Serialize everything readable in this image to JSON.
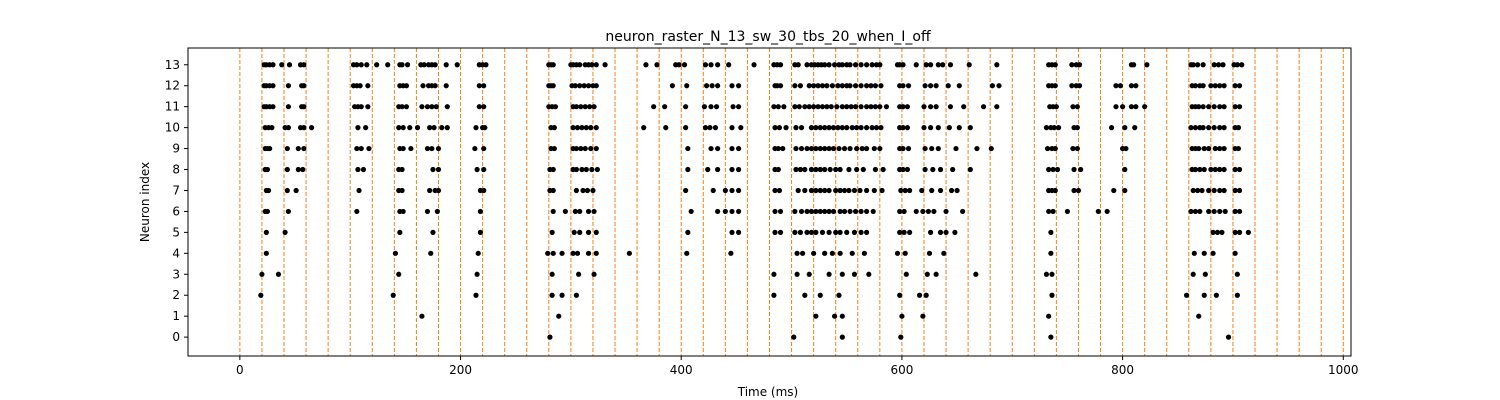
{
  "chart_data": {
    "type": "scatter",
    "title": "neuron_raster_N_13_sw_30_tbs_20_when_I_off",
    "xlabel": "Time (ms)",
    "ylabel": "Neuron index",
    "xlim": [
      -47,
      1007
    ],
    "ylim": [
      -0.9,
      13.8
    ],
    "xticks": [
      0,
      200,
      400,
      600,
      800,
      1000
    ],
    "yticks": [
      0,
      1,
      2,
      3,
      4,
      5,
      6,
      7,
      8,
      9,
      10,
      11,
      12,
      13
    ],
    "grid": false,
    "legend": "none",
    "colors": {
      "spike": "#000000",
      "boundary": "#ff7f0e"
    },
    "time_bin_boundaries": [
      0,
      20,
      40,
      60,
      80,
      100,
      120,
      140,
      160,
      180,
      200,
      220,
      240,
      260,
      280,
      300,
      320,
      340,
      360,
      380,
      400,
      420,
      440,
      460,
      480,
      500,
      520,
      540,
      560,
      580,
      600,
      620,
      640,
      660,
      680,
      700,
      720,
      740,
      760,
      780,
      800,
      820,
      840,
      860,
      880,
      900,
      920,
      940,
      960,
      980,
      1000
    ],
    "spikes": [
      {
        "neuron": 13,
        "times": [
          22,
          24,
          27,
          30,
          38,
          45,
          55,
          58,
          103,
          106,
          110,
          115,
          124,
          134,
          145,
          147,
          152,
          164,
          167,
          171,
          174,
          177,
          187,
          197,
          217,
          220,
          223,
          280,
          282,
          284,
          300,
          302,
          305,
          308,
          313,
          316,
          319,
          323,
          331,
          368,
          378,
          395,
          398,
          403,
          422,
          427,
          433,
          443,
          466,
          484,
          487,
          490,
          503,
          506,
          514,
          518,
          521,
          524,
          527,
          530,
          534,
          539,
          543,
          546,
          550,
          553,
          558,
          563,
          568,
          573,
          577,
          580,
          596,
          598,
          601,
          613,
          622,
          626,
          633,
          637,
          644,
          661,
          686,
          733,
          736,
          739,
          754,
          758,
          761,
          808,
          810,
          822,
          862,
          864,
          868,
          873,
          883,
          887,
          891,
          901,
          904,
          908
        ]
      },
      {
        "neuron": 12,
        "times": [
          22,
          24,
          27,
          30,
          44,
          56,
          58,
          103,
          106,
          109,
          116,
          145,
          148,
          151,
          166,
          171,
          174,
          177,
          187,
          217,
          221,
          280,
          282,
          284,
          301,
          304,
          308,
          312,
          316,
          320,
          323,
          392,
          405,
          423,
          428,
          433,
          446,
          452,
          485,
          487,
          490,
          503,
          508,
          516,
          520,
          524,
          528,
          532,
          537,
          542,
          546,
          550,
          553,
          558,
          563,
          568,
          572,
          576,
          581,
          598,
          601,
          606,
          621,
          626,
          631,
          642,
          652,
          682,
          688,
          733,
          736,
          739,
          754,
          758,
          761,
          794,
          798,
          808,
          812,
          863,
          866,
          870,
          873,
          880,
          884,
          888,
          892,
          902,
          906
        ]
      },
      {
        "neuron": 11,
        "times": [
          22,
          24,
          27,
          30,
          44,
          56,
          58,
          104,
          107,
          110,
          116,
          144,
          147,
          151,
          165,
          170,
          174,
          178,
          188,
          217,
          221,
          280,
          283,
          286,
          302,
          305,
          309,
          313,
          317,
          321,
          375,
          385,
          404,
          421,
          427,
          432,
          447,
          452,
          484,
          488,
          493,
          503,
          507,
          512,
          516,
          520,
          524,
          528,
          532,
          536,
          541,
          546,
          550,
          554,
          558,
          563,
          568,
          572,
          576,
          580,
          586,
          598,
          601,
          605,
          620,
          626,
          631,
          644,
          656,
          674,
          686,
          734,
          737,
          740,
          755,
          759,
          794,
          800,
          808,
          812,
          820,
          863,
          866,
          869,
          873,
          878,
          883,
          888,
          892,
          902,
          906
        ]
      },
      {
        "neuron": 10,
        "times": [
          23,
          26,
          29,
          41,
          44,
          55,
          58,
          65,
          107,
          114,
          144,
          148,
          154,
          161,
          172,
          176,
          183,
          188,
          214,
          220,
          222,
          282,
          285,
          302,
          306,
          310,
          314,
          318,
          323,
          366,
          386,
          404,
          422,
          426,
          431,
          446,
          454,
          485,
          489,
          495,
          504,
          509,
          518,
          522,
          526,
          530,
          534,
          538,
          542,
          546,
          550,
          555,
          559,
          563,
          568,
          573,
          577,
          581,
          598,
          601,
          605,
          620,
          626,
          633,
          643,
          652,
          662,
          731,
          735,
          738,
          742,
          756,
          759,
          790,
          802,
          811,
          862,
          866,
          870,
          873,
          878,
          883,
          888,
          892,
          902,
          905
        ]
      },
      {
        "neuron": 9,
        "times": [
          23,
          25,
          27,
          43,
          53,
          58,
          106,
          110,
          117,
          145,
          148,
          155,
          170,
          174,
          180,
          213,
          221,
          282,
          285,
          302,
          305,
          309,
          313,
          318,
          323,
          406,
          427,
          433,
          446,
          452,
          485,
          488,
          492,
          504,
          509,
          514,
          518,
          522,
          526,
          530,
          534,
          538,
          543,
          548,
          553,
          559,
          564,
          568,
          575,
          580,
          598,
          601,
          606,
          621,
          627,
          633,
          649,
          668,
          681,
          732,
          736,
          739,
          755,
          759,
          800,
          803,
          863,
          866,
          869,
          874,
          878,
          884,
          888,
          892,
          902,
          905
        ]
      },
      {
        "neuron": 8,
        "times": [
          23,
          25,
          43,
          53,
          57,
          107,
          112,
          144,
          147,
          175,
          180,
          215,
          221,
          281,
          284,
          302,
          305,
          310,
          314,
          319,
          324,
          406,
          424,
          433,
          446,
          452,
          485,
          488,
          504,
          508,
          512,
          518,
          522,
          526,
          530,
          535,
          540,
          544,
          552,
          559,
          565,
          576,
          583,
          598,
          601,
          605,
          621,
          628,
          635,
          646,
          662,
          733,
          737,
          741,
          756,
          762,
          802,
          863,
          866,
          870,
          874,
          880,
          884,
          888,
          892,
          902,
          906
        ]
      },
      {
        "neuron": 7,
        "times": [
          24,
          26,
          43,
          51,
          108,
          144,
          147,
          172,
          177,
          180,
          218,
          221,
          281,
          284,
          305,
          311,
          315,
          320,
          404,
          429,
          440,
          446,
          452,
          485,
          489,
          506,
          512,
          518,
          522,
          526,
          530,
          534,
          540,
          544,
          548,
          552,
          557,
          562,
          568,
          575,
          582,
          599,
          603,
          607,
          618,
          627,
          635,
          645,
          650,
          733,
          736,
          739,
          756,
          760,
          792,
          802,
          864,
          868,
          872,
          878,
          883,
          888,
          892,
          902,
          906
        ]
      },
      {
        "neuron": 6,
        "times": [
          23,
          25,
          44,
          106,
          145,
          148,
          170,
          179,
          218,
          284,
          295,
          304,
          308,
          316,
          321,
          409,
          433,
          440,
          446,
          452,
          485,
          490,
          503,
          509,
          514,
          518,
          522,
          526,
          530,
          534,
          538,
          544,
          548,
          553,
          558,
          563,
          568,
          574,
          598,
          602,
          613,
          619,
          624,
          629,
          640,
          655,
          733,
          737,
          750,
          778,
          786,
          862,
          866,
          870,
          878,
          883,
          888,
          893,
          902,
          906
        ]
      },
      {
        "neuron": 5,
        "times": [
          24,
          41,
          145,
          175,
          218,
          283,
          303,
          308,
          316,
          323,
          406,
          446,
          452,
          485,
          490,
          503,
          508,
          514,
          518,
          522,
          528,
          534,
          540,
          544,
          550,
          557,
          563,
          568,
          598,
          602,
          607,
          626,
          635,
          640,
          648,
          735,
          882,
          886,
          890,
          902,
          906,
          914
        ]
      },
      {
        "neuron": 4,
        "times": [
          24,
          141,
          173,
          216,
          279,
          284,
          292,
          302,
          306,
          316,
          323,
          353,
          405,
          445,
          505,
          510,
          520,
          530,
          537,
          544,
          555,
          566,
          596,
          603,
          625,
          638,
          735,
          865,
          874,
          882,
          902
        ]
      },
      {
        "neuron": 3,
        "times": [
          20,
          35,
          144,
          215,
          283,
          307,
          321,
          484,
          505,
          516,
          534,
          546,
          557,
          570,
          604,
          623,
          631,
          667,
          731,
          736,
          864,
          875,
          904
        ]
      },
      {
        "neuron": 2,
        "times": [
          19,
          139,
          214,
          283,
          292,
          305,
          484,
          512,
          526,
          543,
          598,
          616,
          622,
          736,
          858,
          874,
          885,
          904
        ]
      },
      {
        "neuron": 1,
        "times": [
          165,
          289,
          522,
          539,
          546,
          600,
          619,
          733,
          869
        ]
      },
      {
        "neuron": 0,
        "times": [
          281,
          502,
          546,
          599,
          735,
          896
        ]
      }
    ]
  }
}
